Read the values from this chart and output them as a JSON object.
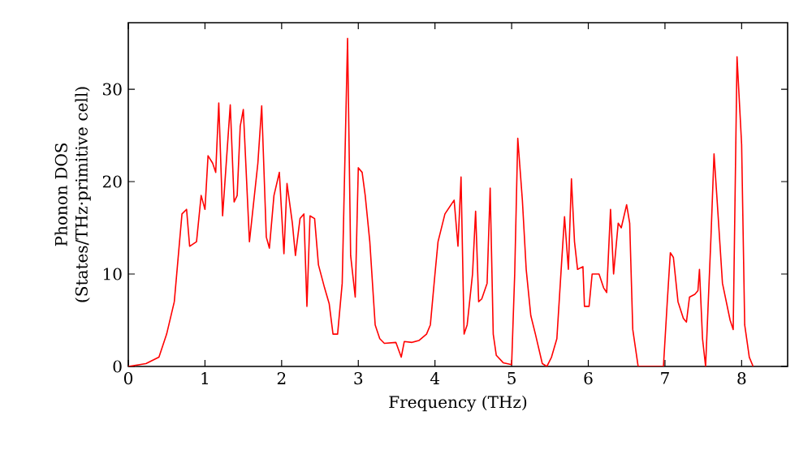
{
  "chart_data": {
    "type": "line",
    "xlabel": "Frequency (THz)",
    "ylabel": "Phonon DOS\n(States/THz·primitive cell)",
    "xlim": [
      0,
      8.6
    ],
    "ylim": [
      0,
      37.2
    ],
    "xticks": [
      0,
      1,
      2,
      3,
      4,
      5,
      6,
      7,
      8
    ],
    "yticks": [
      0,
      10,
      20,
      30
    ],
    "grid": false,
    "marker": "none",
    "line_style": "solid",
    "series": [
      {
        "color": "#ff0000",
        "x": [
          0,
          0.23,
          0.4,
          0.5,
          0.6,
          0.7,
          0.76,
          0.8,
          0.89,
          0.95,
          1.0,
          1.04,
          1.1,
          1.14,
          1.18,
          1.23,
          1.33,
          1.38,
          1.42,
          1.46,
          1.5,
          1.58,
          1.69,
          1.74,
          1.8,
          1.84,
          1.9,
          1.97,
          2.03,
          2.07,
          2.14,
          2.18,
          2.24,
          2.29,
          2.33,
          2.37,
          2.43,
          2.48,
          2.56,
          2.62,
          2.67,
          2.73,
          2.79,
          2.86,
          2.9,
          2.96,
          3.0,
          3.05,
          3.09,
          3.15,
          3.22,
          3.24,
          3.28,
          3.34,
          3.49,
          3.56,
          3.6,
          3.7,
          3.79,
          3.89,
          3.94,
          4.0,
          4.04,
          4.13,
          4.25,
          4.3,
          4.34,
          4.38,
          4.42,
          4.49,
          4.53,
          4.57,
          4.61,
          4.68,
          4.72,
          4.76,
          4.8,
          4.89,
          5.0,
          5.04,
          5.08,
          5.14,
          5.19,
          5.25,
          5.31,
          5.4,
          5.46,
          5.52,
          5.59,
          5.65,
          5.69,
          5.74,
          5.78,
          5.82,
          5.86,
          5.93,
          5.95,
          6.01,
          6.05,
          6.14,
          6.2,
          6.24,
          6.29,
          6.33,
          6.39,
          6.43,
          6.5,
          6.54,
          6.58,
          6.65,
          6.98,
          7.03,
          7.07,
          7.11,
          7.17,
          7.24,
          7.28,
          7.32,
          7.39,
          7.43,
          7.45,
          7.49,
          7.53,
          7.6,
          7.64,
          7.68,
          7.75,
          7.85,
          7.89,
          7.94,
          8.0,
          8.04,
          8.1,
          8.15
        ],
        "values": [
          0,
          0.3,
          1,
          3.5,
          7,
          16.5,
          17,
          13,
          13.5,
          18.5,
          17,
          22.8,
          22,
          21,
          28.5,
          16.3,
          28.3,
          17.8,
          18.5,
          26,
          27.8,
          13.5,
          22,
          28.2,
          14,
          12.8,
          18.5,
          21,
          12.2,
          19.8,
          15.5,
          12,
          16,
          16.5,
          6.5,
          16.3,
          16,
          11,
          8.5,
          6.8,
          3.5,
          3.5,
          9,
          35.5,
          12,
          7.5,
          21.5,
          21,
          18.5,
          13.5,
          4.5,
          4,
          3,
          2.5,
          2.6,
          1,
          2.7,
          2.6,
          2.8,
          3.5,
          4.5,
          10,
          13.5,
          16.5,
          18,
          13,
          20.5,
          3.5,
          4.5,
          10,
          16.8,
          7,
          7.3,
          9,
          19.3,
          3.5,
          1.2,
          0.4,
          0.2,
          10,
          24.7,
          18,
          10.5,
          5.5,
          3.5,
          0.3,
          0,
          1,
          3,
          11,
          16.2,
          10.5,
          20.3,
          13.5,
          10.5,
          10.8,
          6.5,
          6.5,
          10,
          10,
          8.5,
          8,
          17,
          10,
          15.5,
          15,
          17.5,
          15.5,
          4,
          0,
          0,
          7,
          12.3,
          11.8,
          7,
          5.2,
          4.8,
          7.5,
          7.8,
          8.2,
          10.5,
          3,
          0,
          14,
          23,
          18,
          9,
          5,
          4,
          33.5,
          24,
          4.5,
          1,
          0
        ]
      }
    ]
  }
}
